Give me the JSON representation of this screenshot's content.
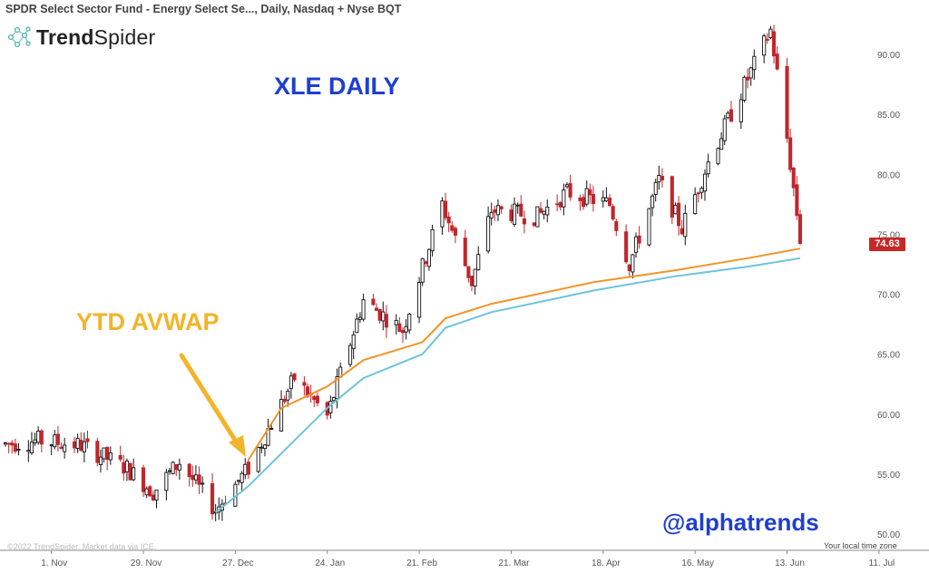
{
  "header": {
    "title": "SPDR Select Sector Fund - Energy Select Se..., Daily, Nasdaq + Nyse BQT"
  },
  "logo": {
    "bold_part": "Trend",
    "light_part": "Spider",
    "icon": "trendspider-network-icon"
  },
  "annotations": {
    "title": "XLE DAILY",
    "avwap_label": "YTD AVWAP",
    "handle": "@alphatrends",
    "copyright": "©2022 TrendSpider. Market data via ICE.",
    "timezone": "Your local time zone"
  },
  "colors": {
    "bull": "#111111",
    "bear": "#c0272d",
    "avwap_high": "#f0942a",
    "avwap_low": "#6cc4dc",
    "title": "#1f3fd0",
    "annotation": "#f2b42a",
    "price_tag": "#c62828"
  },
  "chart_data": {
    "type": "candlestick",
    "title": "SPDR Select Sector Fund - Energy Select Se..., Daily, Nasdaq + Nyse BQT",
    "y_axis_side": "right",
    "ylim": [
      49.5,
      93.8
    ],
    "y_ticks": [
      "50.00",
      "55.00",
      "60.00",
      "65.00",
      "70.00",
      "75.00",
      "80.00",
      "85.00",
      "90.00"
    ],
    "x_ticks": [
      "1. Nov",
      "29. Nov",
      "27. Dec",
      "24. Jan",
      "21. Feb",
      "21. Mar",
      "18. Apr",
      "16. May",
      "13. Jun",
      "11. Jul"
    ],
    "last_price": "74.63",
    "grid": false,
    "candles_start_date": "2021-10-18",
    "candles_end_date": "2022-06-17",
    "anchor_points": [
      {
        "date": "2021-10-18",
        "price": 57.5
      },
      {
        "date": "2021-10-28",
        "price": 57.8
      },
      {
        "date": "2021-11-10",
        "price": 57.4
      },
      {
        "date": "2021-11-24",
        "price": 55.5
      },
      {
        "date": "2021-12-02",
        "price": 53.5
      },
      {
        "date": "2021-12-10",
        "price": 56.0
      },
      {
        "date": "2021-12-21",
        "price": 52.0
      },
      {
        "date": "2021-12-31",
        "price": 55.5
      },
      {
        "date": "2022-01-14",
        "price": 63.0
      },
      {
        "date": "2022-01-24",
        "price": 59.8
      },
      {
        "date": "2022-02-04",
        "price": 69.5
      },
      {
        "date": "2022-02-16",
        "price": 67.0
      },
      {
        "date": "2022-02-28",
        "price": 77.5
      },
      {
        "date": "2022-03-09",
        "price": 71.0
      },
      {
        "date": "2022-03-15",
        "price": 77.0
      },
      {
        "date": "2022-03-29",
        "price": 76.5
      },
      {
        "date": "2022-04-07",
        "price": 78.5
      },
      {
        "date": "2022-04-20",
        "price": 77.5
      },
      {
        "date": "2022-04-26",
        "price": 72.5
      },
      {
        "date": "2022-05-05",
        "price": 79.5
      },
      {
        "date": "2022-05-12",
        "price": 75.5
      },
      {
        "date": "2022-05-20",
        "price": 81.0
      },
      {
        "date": "2022-06-01",
        "price": 88.0
      },
      {
        "date": "2022-06-08",
        "price": 92.0
      },
      {
        "date": "2022-06-13",
        "price": 83.0
      },
      {
        "date": "2022-06-17",
        "price": 74.63
      }
    ],
    "series": [
      {
        "name": "YTD AVWAP (upper)",
        "color": "#f0942a",
        "points": [
          {
            "date": "2021-12-31",
            "price": 56.2
          },
          {
            "date": "2022-01-10",
            "price": 60.5
          },
          {
            "date": "2022-01-24",
            "price": 62.3
          },
          {
            "date": "2022-02-04",
            "price": 64.5
          },
          {
            "date": "2022-02-22",
            "price": 66.0
          },
          {
            "date": "2022-03-01",
            "price": 68.0
          },
          {
            "date": "2022-03-15",
            "price": 69.2
          },
          {
            "date": "2022-04-15",
            "price": 71.0
          },
          {
            "date": "2022-05-10",
            "price": 72.0
          },
          {
            "date": "2022-06-01",
            "price": 73.0
          },
          {
            "date": "2022-06-17",
            "price": 73.8
          }
        ]
      },
      {
        "name": "YTD AVWAP (lower)",
        "color": "#6cc4dc",
        "points": [
          {
            "date": "2021-12-21",
            "price": 51.8
          },
          {
            "date": "2021-12-31",
            "price": 54.0
          },
          {
            "date": "2022-01-14",
            "price": 57.8
          },
          {
            "date": "2022-01-24",
            "price": 60.5
          },
          {
            "date": "2022-02-04",
            "price": 63.0
          },
          {
            "date": "2022-02-22",
            "price": 65.0
          },
          {
            "date": "2022-03-01",
            "price": 67.2
          },
          {
            "date": "2022-03-15",
            "price": 68.5
          },
          {
            "date": "2022-04-15",
            "price": 70.3
          },
          {
            "date": "2022-05-10",
            "price": 71.5
          },
          {
            "date": "2022-06-01",
            "price": 72.3
          },
          {
            "date": "2022-06-17",
            "price": 73.0
          }
        ]
      }
    ]
  }
}
